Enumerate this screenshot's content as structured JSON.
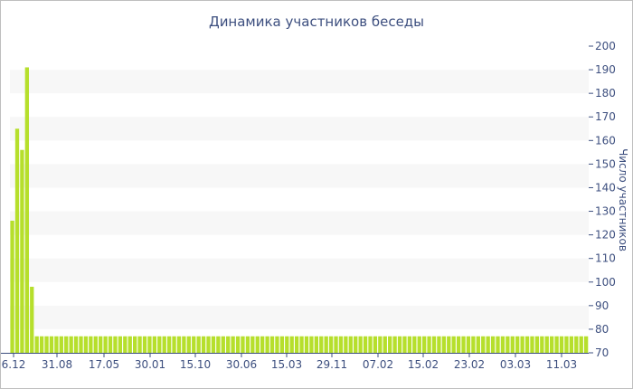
{
  "chart_data": {
    "type": "bar",
    "title": "Динамика участников беседы",
    "ylabel": "Число участников",
    "xlabel": "",
    "ylim": [
      70,
      200
    ],
    "y_ticks": [
      70,
      80,
      90,
      100,
      110,
      120,
      130,
      140,
      150,
      160,
      170,
      180,
      190,
      200
    ],
    "y_axis_position": "right",
    "grid": "alternating horizontal bands",
    "bar_color": "#b6df2c",
    "band_color": "#f7f7f7",
    "text_color": "#3d4f7f",
    "x_tick_labels": [
      "6.12",
      "31.08",
      "17.05",
      "30.01",
      "15.10",
      "30.06",
      "15.03",
      "29.11",
      "07.02",
      "15.02",
      "23.02",
      "03.03",
      "11.03"
    ],
    "values": [
      126,
      165,
      156,
      191,
      98,
      77,
      77,
      77,
      77,
      77,
      77,
      77,
      77,
      77,
      77,
      77,
      77,
      77,
      77,
      77,
      77,
      77,
      77,
      77,
      77,
      77,
      77,
      77,
      77,
      77,
      77,
      77,
      77,
      77,
      77,
      77,
      77,
      77,
      77,
      77,
      77,
      77,
      77,
      77,
      77,
      77,
      77,
      77,
      77,
      77,
      77,
      77,
      77,
      77,
      77,
      77,
      77,
      77,
      77,
      77,
      77,
      77,
      77,
      77,
      77,
      77,
      77,
      77,
      77,
      77,
      77,
      77,
      77,
      77,
      77,
      77,
      77,
      77,
      77,
      77,
      77,
      77,
      77,
      77,
      77,
      77,
      77,
      77,
      77,
      77,
      77,
      77,
      77,
      77,
      77,
      77,
      77,
      77,
      77,
      77,
      77,
      77,
      77,
      77,
      77,
      77,
      77,
      77,
      77,
      77,
      77,
      77,
      77,
      77,
      77,
      77,
      77,
      77
    ]
  }
}
